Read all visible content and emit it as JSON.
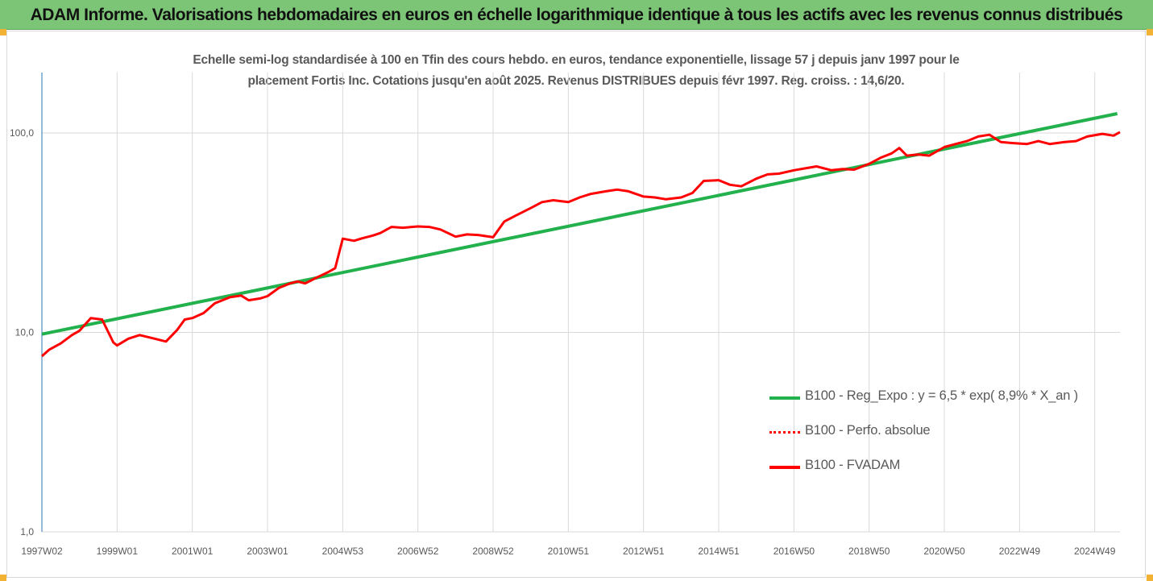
{
  "header": {
    "title": "ADAM Informe. Valorisations hebdomadaires en euros en échelle logarithmique identique à tous les actifs avec les revenus connus distribués"
  },
  "colors": {
    "header_bg": "#7cc576",
    "corner_accent": "#f2b233",
    "trend_green": "#22b14c",
    "perf_red": "#ff0000",
    "fvadam_red": "#ff0000",
    "axis_blue": "#2e75b6",
    "grid": "#d9d9d9"
  },
  "chart_data": {
    "type": "line",
    "title": "Echelle semi-log standardisée à 100 en Tfin des cours hebdo. en euros, tendance exponentielle, lissage 57 j depuis janv 1997 pour le placement Fortis Inc. Cotations jusqu'en août 2025. Revenus DISTRIBUES depuis févr 1997. Reg. croiss. : 14,6/20.",
    "title_lines": [
      "Echelle semi-log standardisée à 100 en Tfin des cours hebdo. en euros, tendance exponentielle, lissage 57 j depuis janv 1997 pour le",
      "placement Fortis Inc. Cotations jusqu'en août 2025. Revenus DISTRIBUES depuis févr 1997. Reg. croiss. : 14,6/20."
    ],
    "y_scale": "log",
    "ylim": [
      1,
      200
    ],
    "y_ticks": [
      "1,0",
      "10,0",
      "100,0"
    ],
    "y_tick_values": [
      1,
      10,
      100
    ],
    "x_tick_labels": [
      "1997W02",
      "1999W01",
      "2001W01",
      "2003W01",
      "2004W53",
      "2006W52",
      "2008W52",
      "2010W51",
      "2012W51",
      "2014W51",
      "2016W50",
      "2018W50",
      "2020W50",
      "2022W49",
      "2024W49"
    ],
    "x_tick_years": [
      1997.0,
      1999.0,
      2001.0,
      2003.0,
      2005.0,
      2007.0,
      2009.0,
      2011.0,
      2013.0,
      2015.0,
      2017.0,
      2019.0,
      2021.0,
      2023.0,
      2025.0
    ],
    "x_range": [
      1997.0,
      2025.67
    ],
    "grid": "vertical and horizontal",
    "legend_position": "bottom-right",
    "series": [
      {
        "name": "B100 - Reg_Expo : y = 6,5 * exp( 8,9% *  X_an )",
        "color": "#22b14c",
        "style": "solid",
        "x": [
          1997.0,
          2025.6
        ],
        "y": [
          9.8,
          125
        ]
      },
      {
        "name": "B100 - Perfo. absolue",
        "color": "#ff0000",
        "style": "dotted",
        "x": [],
        "y": []
      },
      {
        "name": "B100 - FVADAM",
        "color": "#ff0000",
        "style": "solid",
        "x": [
          1997.0,
          1997.2,
          1997.5,
          1997.8,
          1998.0,
          1998.3,
          1998.6,
          1998.9,
          1999.0,
          1999.3,
          1999.6,
          2000.0,
          2000.3,
          2000.6,
          2000.8,
          2001.0,
          2001.3,
          2001.6,
          2002.0,
          2002.3,
          2002.5,
          2002.8,
          2003.0,
          2003.3,
          2003.6,
          2003.8,
          2004.0,
          2004.3,
          2004.6,
          2004.8,
          2005.0,
          2005.3,
          2005.5,
          2005.8,
          2006.0,
          2006.3,
          2006.6,
          2007.0,
          2007.3,
          2007.6,
          2008.0,
          2008.3,
          2008.6,
          2009.0,
          2009.3,
          2009.6,
          2010.0,
          2010.3,
          2010.6,
          2011.0,
          2011.3,
          2011.6,
          2012.0,
          2012.3,
          2012.6,
          2013.0,
          2013.3,
          2013.6,
          2014.0,
          2014.3,
          2014.6,
          2015.0,
          2015.3,
          2015.6,
          2016.0,
          2016.3,
          2016.6,
          2017.0,
          2017.3,
          2017.6,
          2018.0,
          2018.3,
          2018.6,
          2019.0,
          2019.3,
          2019.6,
          2019.8,
          2020.0,
          2020.3,
          2020.6,
          2021.0,
          2021.3,
          2021.6,
          2021.9,
          2022.2,
          2022.5,
          2022.8,
          2023.2,
          2023.5,
          2023.8,
          2024.2,
          2024.5,
          2024.8,
          2025.2,
          2025.5,
          2025.67
        ],
        "y": [
          7.6,
          8.2,
          8.8,
          9.7,
          10.2,
          11.8,
          11.6,
          8.9,
          8.6,
          9.3,
          9.7,
          9.3,
          9.0,
          10.3,
          11.6,
          11.8,
          12.5,
          14.0,
          15.0,
          15.3,
          14.5,
          14.8,
          15.2,
          16.7,
          17.6,
          18.0,
          17.6,
          18.8,
          20.0,
          21.0,
          29.5,
          28.8,
          29.6,
          30.6,
          31.5,
          33.8,
          33.5,
          34.0,
          33.8,
          32.8,
          30.2,
          31.0,
          30.8,
          30.0,
          36.0,
          38.5,
          42.0,
          45.0,
          46.0,
          45.0,
          47.5,
          49.5,
          51.0,
          52.0,
          51.0,
          48.0,
          47.5,
          46.5,
          47.5,
          50.0,
          57.5,
          58.0,
          55.0,
          54.0,
          59.0,
          62.0,
          62.5,
          65.0,
          66.5,
          68.0,
          65.0,
          66.0,
          65.5,
          70.0,
          75.0,
          79.0,
          84.0,
          77.0,
          78.0,
          77.0,
          85.0,
          88.0,
          91.0,
          96.0,
          98.0,
          90.0,
          89.0,
          88.0,
          91.0,
          88.0,
          90.0,
          91.0,
          96.0,
          99.0,
          97.0,
          101.0
        ]
      }
    ]
  }
}
